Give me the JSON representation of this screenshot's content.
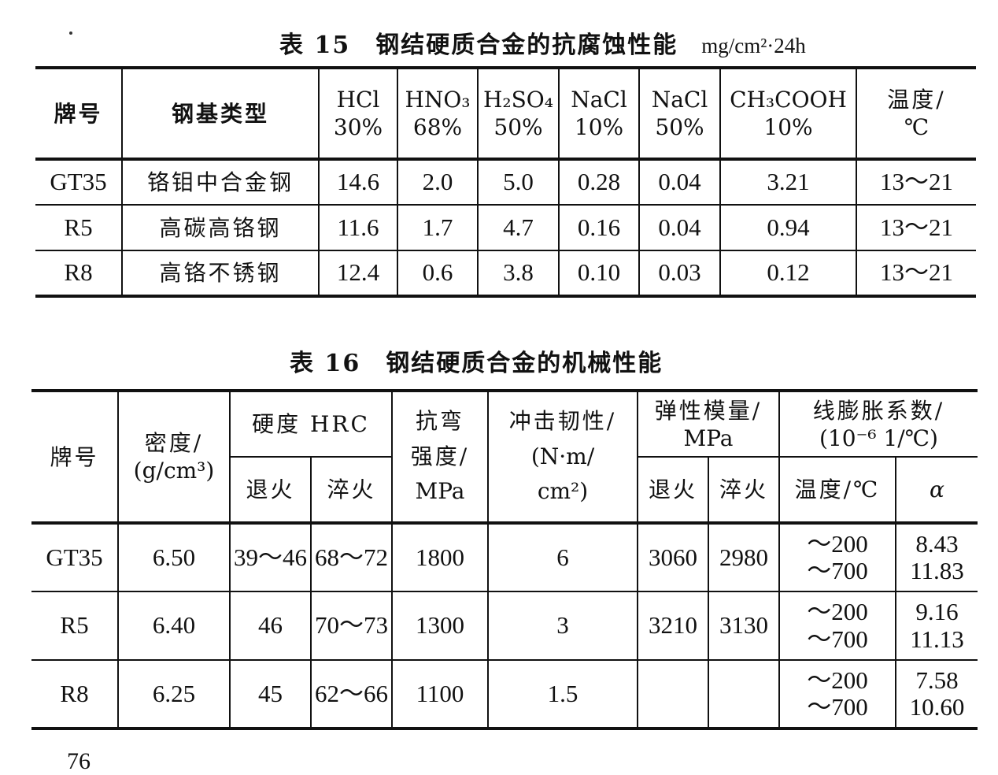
{
  "table15": {
    "title": "表 15　钢结硬质合金的抗腐蚀性能",
    "unit": "mg/cm²·24h",
    "headers": [
      "牌号",
      "钢基类型",
      "HCl",
      "HNO₃",
      "H₂SO₄",
      "NaCl",
      "NaCl",
      "CH₃COOH",
      "温度/"
    ],
    "concentrations": [
      "30%",
      "68%",
      "50%",
      "10%",
      "50%",
      "10%",
      "℃"
    ],
    "rows": [
      [
        "GT35",
        "铬钼中合金钢",
        "14.6",
        "2.0",
        "5.0",
        "0.28",
        "0.04",
        "3.21",
        "13～21"
      ],
      [
        "R5",
        "高碳高铬钢",
        "11.6",
        "1.7",
        "4.7",
        "0.16",
        "0.04",
        "0.94",
        "13～21"
      ],
      [
        "R8",
        "高铬不锈钢",
        "12.4",
        "0.6",
        "3.8",
        "0.10",
        "0.03",
        "0.12",
        "13～21"
      ]
    ]
  },
  "table16": {
    "title": "表 16　钢结硬质合金的机械性能",
    "headers": {
      "grade": "牌号",
      "density": "密度/",
      "density_unit": "(g/cm³)",
      "hardness": "硬度 HRC",
      "annealed": "退火",
      "quenched": "淬火",
      "bending": "抗弯",
      "bending2": "强度/",
      "bending_unit": "MPa",
      "impact": "冲击韧性/",
      "impact_unit1": "(N·m/",
      "impact_unit2": "cm²)",
      "modulus": "弹性模量/",
      "modulus_unit": "MPa",
      "mod_annealed": "退火",
      "mod_quenched": "淬火",
      "expansion": "线膨胀系数/",
      "expansion_unit": "(10⁻⁶ 1/℃)",
      "temp": "温度/℃",
      "alpha": "α"
    },
    "rows": [
      {
        "grade": "GT35",
        "density": "6.50",
        "annealed": "39～46",
        "quenched": "68～72",
        "bending": "1800",
        "impact": "6",
        "mod_annealed": "3060",
        "mod_quenched": "2980",
        "temp1": "～200",
        "temp2": "～700",
        "alpha1": "8.43",
        "alpha2": "11.83"
      },
      {
        "grade": "R5",
        "density": "6.40",
        "annealed": "46",
        "quenched": "70～73",
        "bending": "1300",
        "impact": "3",
        "mod_annealed": "3210",
        "mod_quenched": "3130",
        "temp1": "～200",
        "temp2": "～700",
        "alpha1": "9.16",
        "alpha2": "11.13"
      },
      {
        "grade": "R8",
        "density": "6.25",
        "annealed": "45",
        "quenched": "62～66",
        "bending": "1100",
        "impact": "1.5",
        "mod_annealed": "",
        "mod_quenched": "",
        "temp1": "～200",
        "temp2": "～700",
        "alpha1": "7.58",
        "alpha2": "10.60"
      }
    ]
  },
  "page_number": "76"
}
